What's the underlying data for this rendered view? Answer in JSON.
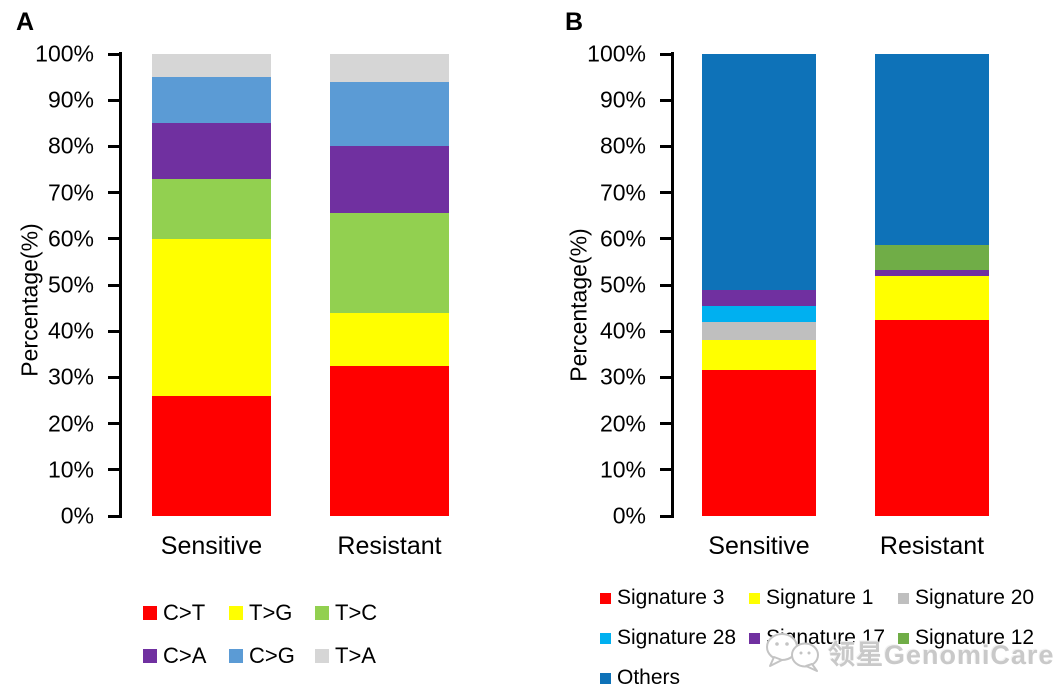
{
  "chart_data": [
    {
      "panel_label": "A",
      "type": "bar",
      "stacked": true,
      "units": "percent",
      "title": "",
      "xlabel": "",
      "ylabel": "Percentage(%)",
      "ylim": [
        0,
        100
      ],
      "yticklabels": [
        "0%",
        "10%",
        "20%",
        "30%",
        "40%",
        "50%",
        "60%",
        "70%",
        "80%",
        "90%",
        "100%"
      ],
      "grid": false,
      "legend_position": "bottom",
      "categories": [
        "Sensitive",
        "Resistant"
      ],
      "series": [
        {
          "name": "C>T",
          "color": "#FF0000",
          "values": [
            26,
            32.5
          ]
        },
        {
          "name": "T>G",
          "color": "#FFFF00",
          "values": [
            34,
            11.5
          ]
        },
        {
          "name": "T>C",
          "color": "#92D050",
          "values": [
            13,
            21.5
          ]
        },
        {
          "name": "C>A",
          "color": "#7030A0",
          "values": [
            12,
            14.5
          ]
        },
        {
          "name": "C>G",
          "color": "#5B9BD5",
          "values": [
            10,
            14
          ]
        },
        {
          "name": "T>A",
          "color": "#D6D6D6",
          "values": [
            5,
            6
          ]
        }
      ]
    },
    {
      "panel_label": "B",
      "type": "bar",
      "stacked": true,
      "units": "percent",
      "title": "",
      "xlabel": "",
      "ylabel": "Percentage(%)",
      "ylim": [
        0,
        100
      ],
      "yticklabels": [
        "0%",
        "10%",
        "20%",
        "30%",
        "40%",
        "50%",
        "60%",
        "70%",
        "80%",
        "90%",
        "100%"
      ],
      "grid": false,
      "legend_position": "bottom",
      "categories": [
        "Sensitive",
        "Resistant"
      ],
      "series": [
        {
          "name": "Signature 3",
          "color": "#FF0000",
          "values": [
            31.5,
            42.5
          ]
        },
        {
          "name": "Signature 1",
          "color": "#FFFF00",
          "values": [
            6.5,
            9.5
          ]
        },
        {
          "name": "Signature 20",
          "color": "#BFBFBF",
          "values": [
            4,
            0
          ]
        },
        {
          "name": "Signature 28",
          "color": "#00B0F0",
          "values": [
            3.5,
            0
          ]
        },
        {
          "name": "Signature 17",
          "color": "#7030A0",
          "values": [
            3.5,
            1.3
          ]
        },
        {
          "name": "Signature 12",
          "color": "#70AD47",
          "values": [
            0,
            5.4
          ]
        },
        {
          "name": "Others",
          "color": "#0E72B8",
          "values": [
            51,
            41.3
          ]
        }
      ]
    }
  ],
  "watermark": {
    "icon": "wechat-chat-bubbles",
    "text": "领星GenomiCare"
  }
}
